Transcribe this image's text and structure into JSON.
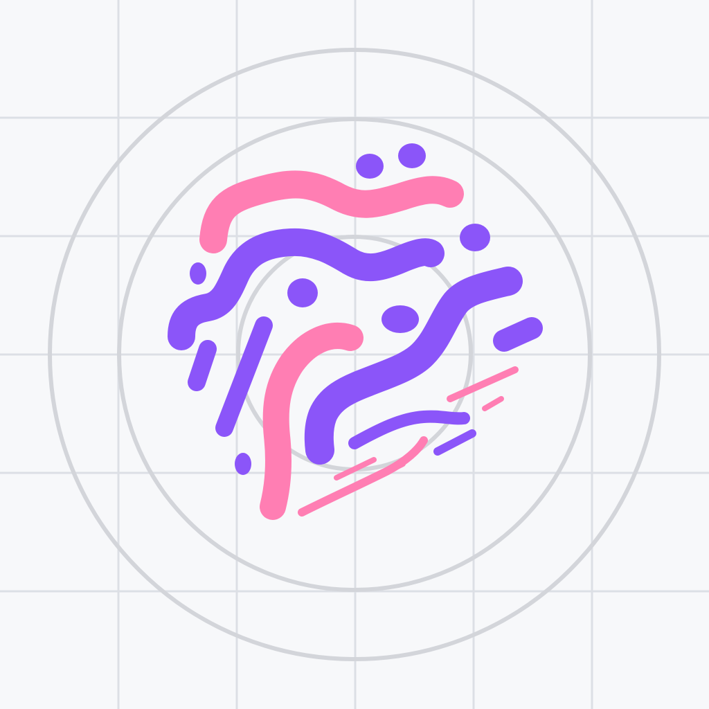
{
  "artwork": {
    "subject": "abstract-squiggle-logo-icon",
    "background_color": "#f7f8fa",
    "grid_color": "#dcdfe5",
    "ring_color": "#d3d5da",
    "colors": {
      "pink": "#ff7eb3",
      "purple": "#8b55f9"
    },
    "grid_columns": 6,
    "grid_rows": 6,
    "guide_circle_count": 3
  }
}
